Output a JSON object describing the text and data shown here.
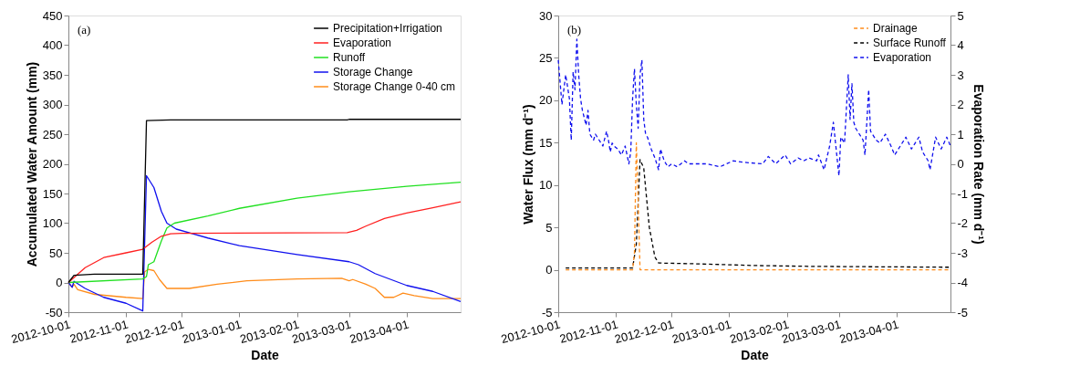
{
  "chart_data": [
    {
      "type": "line",
      "xlabel": "Date",
      "ylabel": "Accumulated Water Amount (mm)",
      "annotations": [
        "(a)"
      ],
      "legend": "top right",
      "grid": false,
      "marker": "none",
      "line_style": "solid",
      "xlim": [
        "2012-10-01",
        "2013-04-30"
      ],
      "xticks": [
        "2012-10-01",
        "2012-11-01",
        "2012-12-01",
        "2013-01-01",
        "2013-02-01",
        "2013-03-01",
        "2013-04-01"
      ],
      "ylim": [
        -50,
        450
      ],
      "yticks": [
        -50,
        0,
        50,
        100,
        150,
        200,
        250,
        300,
        350,
        400,
        450
      ],
      "series": [
        {
          "name": "Precipitation+Irrigation",
          "color": "#000000",
          "x": [
            "2012-10-01",
            "2012-10-04",
            "2012-10-15",
            "2012-11-10",
            "2012-11-12",
            "2012-11-25",
            "2013-02-28",
            "2013-03-01",
            "2013-04-30"
          ],
          "values": [
            0,
            12,
            14,
            14,
            273,
            274,
            274,
            275,
            275
          ]
        },
        {
          "name": "Evaporation",
          "color": "#ff2020",
          "x": [
            "2012-10-01",
            "2012-10-10",
            "2012-10-20",
            "2012-11-01",
            "2012-11-10",
            "2012-11-15",
            "2012-11-20",
            "2012-11-25",
            "2012-12-01",
            "2013-02-28",
            "2013-03-05",
            "2013-03-10",
            "2013-03-20",
            "2013-04-01",
            "2013-04-15",
            "2013-04-30"
          ],
          "values": [
            0,
            25,
            42,
            50,
            56,
            68,
            78,
            82,
            83,
            84,
            88,
            95,
            108,
            117,
            126,
            136
          ]
        },
        {
          "name": "Runoff",
          "color": "#20e020",
          "x": [
            "2012-10-01",
            "2012-11-10",
            "2012-11-12",
            "2012-11-13",
            "2012-11-16",
            "2012-11-20",
            "2012-11-23",
            "2012-11-27",
            "2012-12-15",
            "2013-01-01",
            "2013-02-01",
            "2013-03-01",
            "2013-04-01",
            "2013-04-30"
          ],
          "values": [
            0,
            6,
            10,
            30,
            35,
            70,
            92,
            100,
            112,
            125,
            142,
            153,
            162,
            169
          ]
        },
        {
          "name": "Storage Change",
          "color": "#1010ee",
          "x": [
            "2012-10-01",
            "2012-10-03",
            "2012-10-04",
            "2012-10-10",
            "2012-10-20",
            "2012-11-01",
            "2012-11-10",
            "2012-11-12",
            "2012-11-14",
            "2012-11-16",
            "2012-11-20",
            "2012-11-23",
            "2012-11-28",
            "2012-12-15",
            "2013-01-01",
            "2013-02-01",
            "2013-03-01",
            "2013-03-06",
            "2013-03-15",
            "2013-04-01",
            "2013-04-15",
            "2013-04-30"
          ],
          "values": [
            0,
            -8,
            2,
            -10,
            -25,
            -35,
            -48,
            180,
            170,
            160,
            120,
            100,
            90,
            75,
            62,
            47,
            35,
            30,
            15,
            -5,
            -15,
            -32
          ]
        },
        {
          "name": "Storage Change 0-40 cm",
          "color": "#ff8c1a",
          "x": [
            "2012-10-01",
            "2012-10-03",
            "2012-10-04",
            "2012-10-06",
            "2012-10-15",
            "2012-11-01",
            "2012-11-10",
            "2012-11-11",
            "2012-11-13",
            "2012-11-16",
            "2012-11-19",
            "2012-11-23",
            "2012-12-05",
            "2012-12-20",
            "2013-01-05",
            "2013-02-01",
            "2013-02-25",
            "2013-03-01",
            "2013-03-03",
            "2013-03-10",
            "2013-03-15",
            "2013-03-20",
            "2013-03-25",
            "2013-03-30",
            "2013-04-05",
            "2013-04-15",
            "2013-04-30"
          ],
          "values": [
            0,
            -8,
            -3,
            -12,
            -20,
            -25,
            -27,
            18,
            22,
            20,
            5,
            -10,
            -10,
            -3,
            3,
            6,
            7,
            3,
            5,
            -3,
            -10,
            -25,
            -25,
            -18,
            -22,
            -27,
            -27
          ]
        }
      ]
    },
    {
      "type": "line",
      "xlabel": "Date",
      "ylabel": "Water Flux (mm d⁻¹)",
      "y2label": "Evaporation Rate (mm d⁻¹)",
      "annotations": [
        "(b)"
      ],
      "legend": "top right",
      "grid": false,
      "marker": "none",
      "line_style": "dashed",
      "xlim": [
        "2012-10-01",
        "2013-04-30"
      ],
      "xticks": [
        "2012-10-01",
        "2012-11-01",
        "2012-12-01",
        "2013-01-01",
        "2013-02-01",
        "2013-03-01",
        "2013-04-01"
      ],
      "ylim": [
        -5,
        30
      ],
      "yticks": [
        -5,
        0,
        5,
        10,
        15,
        20,
        25,
        30
      ],
      "y2lim": [
        -5,
        5
      ],
      "y2ticks": [
        -5,
        -4,
        -3,
        -2,
        -1,
        0,
        1,
        2,
        3,
        4,
        5
      ],
      "series": [
        {
          "name": "Drainage",
          "color": "#ff8c1a",
          "x": [
            "2012-10-05",
            "2012-11-10",
            "2012-11-11",
            "2012-11-12",
            "2012-11-13",
            "2012-11-14",
            "2013-04-30"
          ],
          "values": [
            0,
            0,
            2,
            15,
            8,
            0,
            0
          ]
        },
        {
          "name": "Surface Runoff",
          "color": "#000000",
          "x": [
            "2012-10-05",
            "2012-11-10",
            "2012-11-12",
            "2012-11-14",
            "2012-11-16",
            "2012-11-19",
            "2012-11-22",
            "2012-11-24",
            "2012-12-15",
            "2013-01-15",
            "2013-02-15",
            "2013-04-30"
          ],
          "values": [
            0.2,
            0.2,
            3,
            13,
            12,
            5,
            1.5,
            0.8,
            0.7,
            0.5,
            0.4,
            0.3
          ]
        },
        {
          "name": "Evaporation",
          "color": "#1010ee",
          "axis": "y2",
          "x": [
            "2012-10-01",
            "2012-10-03",
            "2012-10-05",
            "2012-10-07",
            "2012-10-08",
            "2012-10-09",
            "2012-10-10",
            "2012-10-11",
            "2012-10-12",
            "2012-10-13",
            "2012-10-14",
            "2012-10-16",
            "2012-10-17",
            "2012-10-18",
            "2012-10-20",
            "2012-10-21",
            "2012-10-23",
            "2012-10-25",
            "2012-10-27",
            "2012-10-28",
            "2012-10-29",
            "2012-10-30",
            "2012-10-31",
            "2012-11-02",
            "2012-11-04",
            "2012-11-06",
            "2012-11-08",
            "2012-11-09",
            "2012-11-10",
            "2012-11-11",
            "2012-11-12",
            "2012-11-13",
            "2012-11-14",
            "2012-11-15",
            "2012-11-16",
            "2012-11-17",
            "2012-11-18",
            "2012-11-20",
            "2012-11-22",
            "2012-11-24",
            "2012-11-25",
            "2012-11-26",
            "2012-11-27",
            "2012-11-29",
            "2012-12-01",
            "2012-12-04",
            "2012-12-08",
            "2012-12-10",
            "2012-12-13",
            "2012-12-20",
            "2012-12-27",
            "2013-01-03",
            "2013-01-09",
            "2013-01-19",
            "2013-01-22",
            "2013-01-26",
            "2013-01-31",
            "2013-02-03",
            "2013-02-07",
            "2013-02-10",
            "2013-02-13",
            "2013-02-17",
            "2013-02-18",
            "2013-02-21",
            "2013-02-24",
            "2013-02-26",
            "2013-03-01",
            "2013-03-02",
            "2013-03-04",
            "2013-03-06",
            "2013-03-07",
            "2013-03-08",
            "2013-03-09",
            "2013-03-10",
            "2013-03-12",
            "2013-03-14",
            "2013-03-15",
            "2013-03-17",
            "2013-03-18",
            "2013-03-21",
            "2013-03-23",
            "2013-03-26",
            "2013-03-29",
            "2013-03-31",
            "2013-04-03",
            "2013-04-06",
            "2013-04-09",
            "2013-04-13",
            "2013-04-15",
            "2013-04-18",
            "2013-04-19",
            "2013-04-22",
            "2013-04-25",
            "2013-04-28",
            "2013-04-30"
          ],
          "values": [
            3.5,
            2.0,
            3.0,
            2.2,
            0.8,
            3.1,
            2.5,
            4.2,
            3.0,
            2.2,
            1.8,
            1.3,
            1.8,
            1.0,
            0.8,
            1.0,
            0.8,
            0.6,
            1.1,
            0.8,
            0.4,
            0.7,
            0.6,
            0.5,
            0.3,
            0.6,
            0.0,
            0.4,
            2.2,
            3.2,
            2.0,
            1.2,
            3.0,
            3.5,
            1.5,
            1.0,
            0.9,
            0.5,
            0.2,
            -0.2,
            0.5,
            0.3,
            0.1,
            -0.1,
            0.0,
            -0.1,
            0.1,
            0.0,
            0.0,
            0.0,
            -0.1,
            0.1,
            0.05,
            0.0,
            0.25,
            0.0,
            0.3,
            0.0,
            0.2,
            0.1,
            0.2,
            0.1,
            0.3,
            -0.2,
            0.6,
            1.4,
            -0.4,
            0.9,
            0.7,
            3.0,
            1.5,
            2.7,
            1.4,
            1.2,
            1.0,
            0.8,
            0.3,
            2.5,
            1.1,
            0.8,
            0.7,
            1.0,
            0.6,
            0.3,
            0.6,
            0.9,
            0.5,
            0.9,
            0.4,
            0.1,
            -0.2,
            0.9,
            0.5,
            0.9,
            0.6
          ]
        }
      ]
    }
  ]
}
